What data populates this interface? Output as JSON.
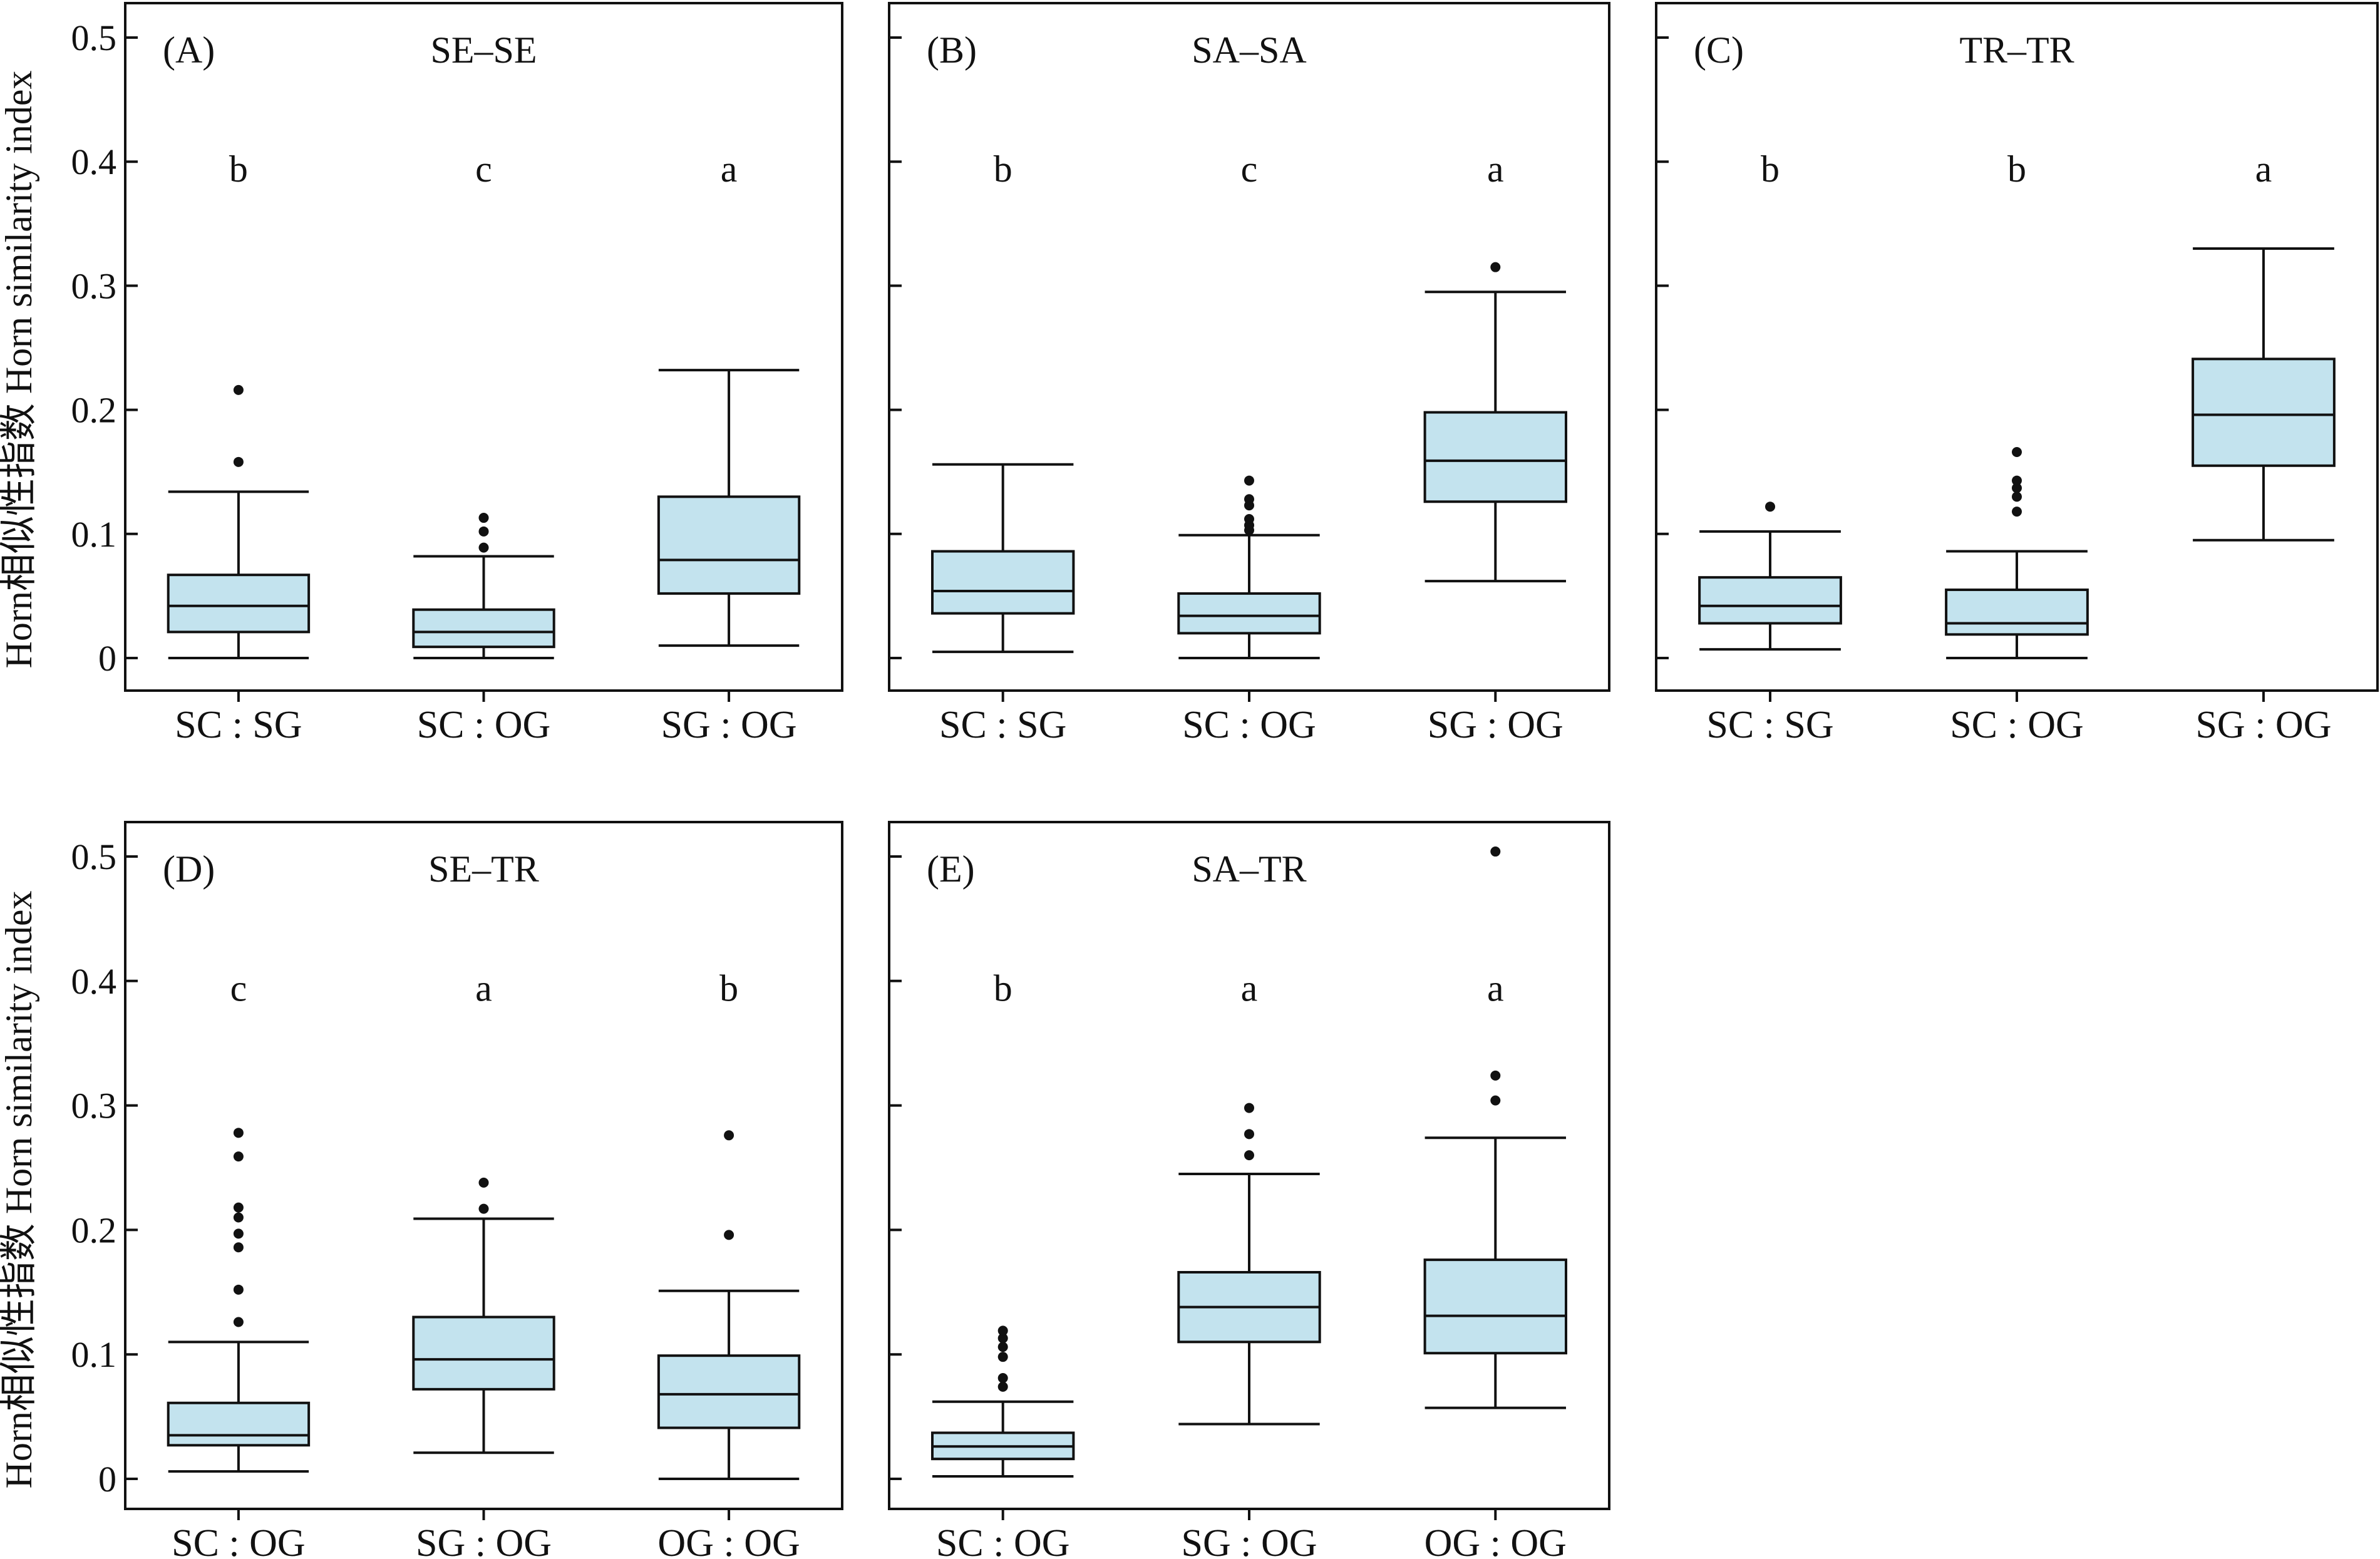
{
  "figure": {
    "ylabel": "Horn相似性指数 Horn similarity index"
  },
  "style": {
    "box_fill": "#c3e3ee",
    "line_color": "#111111"
  },
  "chart_data": [
    {
      "type": "box",
      "panel": "(A)",
      "title": "SE–SE",
      "ylim": [
        0,
        0.52
      ],
      "yticks": [
        0,
        0.1,
        0.2,
        0.3,
        0.4,
        0.5
      ],
      "ytick_labels": [
        "0",
        "0.1",
        "0.2",
        "0.3",
        "0.4",
        "0.5"
      ],
      "show_tick_labels": true,
      "categories": [
        "SC : SG",
        "SC : OG",
        "SG : OG"
      ],
      "boxes": [
        {
          "whisker_low": 0.0,
          "q1": 0.021,
          "median": 0.042,
          "q3": 0.067,
          "whisker_high": 0.134,
          "outliers": [
            0.158,
            0.216
          ]
        },
        {
          "whisker_low": 0.0,
          "q1": 0.009,
          "median": 0.021,
          "q3": 0.039,
          "whisker_high": 0.082,
          "outliers": [
            0.089,
            0.102,
            0.113
          ]
        },
        {
          "whisker_low": 0.01,
          "q1": 0.052,
          "median": 0.079,
          "q3": 0.13,
          "whisker_high": 0.232,
          "outliers": []
        }
      ],
      "letters": [
        "b",
        "c",
        "a"
      ]
    },
    {
      "type": "box",
      "panel": "(B)",
      "title": "SA–SA",
      "ylim": [
        0,
        0.52
      ],
      "yticks": [
        0,
        0.1,
        0.2,
        0.3,
        0.4,
        0.5
      ],
      "ytick_labels": [
        "0",
        "0.1",
        "0.2",
        "0.3",
        "0.4",
        "0.5"
      ],
      "show_tick_labels": false,
      "categories": [
        "SC : SG",
        "SC : OG",
        "SG : OG"
      ],
      "boxes": [
        {
          "whisker_low": 0.005,
          "q1": 0.036,
          "median": 0.054,
          "q3": 0.086,
          "whisker_high": 0.156,
          "outliers": []
        },
        {
          "whisker_low": 0.0,
          "q1": 0.02,
          "median": 0.034,
          "q3": 0.052,
          "whisker_high": 0.099,
          "outliers": [
            0.103,
            0.107,
            0.112,
            0.123,
            0.128,
            0.143
          ]
        },
        {
          "whisker_low": 0.062,
          "q1": 0.126,
          "median": 0.159,
          "q3": 0.198,
          "whisker_high": 0.295,
          "outliers": [
            0.315
          ]
        }
      ],
      "letters": [
        "b",
        "c",
        "a"
      ]
    },
    {
      "type": "box",
      "panel": "(C)",
      "title": "TR–TR",
      "ylim": [
        0,
        0.52
      ],
      "yticks": [
        0,
        0.1,
        0.2,
        0.3,
        0.4,
        0.5
      ],
      "ytick_labels": [
        "0",
        "0.1",
        "0.2",
        "0.3",
        "0.4",
        "0.5"
      ],
      "show_tick_labels": false,
      "categories": [
        "SC : SG",
        "SC : OG",
        "SG : OG"
      ],
      "boxes": [
        {
          "whisker_low": 0.007,
          "q1": 0.028,
          "median": 0.042,
          "q3": 0.065,
          "whisker_high": 0.102,
          "outliers": [
            0.122
          ]
        },
        {
          "whisker_low": 0.0,
          "q1": 0.019,
          "median": 0.028,
          "q3": 0.055,
          "whisker_high": 0.086,
          "outliers": [
            0.118,
            0.13,
            0.137,
            0.143,
            0.166
          ]
        },
        {
          "whisker_low": 0.095,
          "q1": 0.155,
          "median": 0.196,
          "q3": 0.241,
          "whisker_high": 0.33,
          "outliers": []
        }
      ],
      "letters": [
        "b",
        "b",
        "a"
      ]
    },
    {
      "type": "box",
      "panel": "(D)",
      "title": "SE–TR",
      "ylim": [
        0,
        0.52
      ],
      "yticks": [
        0,
        0.1,
        0.2,
        0.3,
        0.4,
        0.5
      ],
      "ytick_labels": [
        "0",
        "0.1",
        "0.2",
        "0.3",
        "0.4",
        "0.5"
      ],
      "show_tick_labels": true,
      "categories": [
        "SC : OG",
        "SG : OG",
        "OG : OG"
      ],
      "boxes": [
        {
          "whisker_low": 0.006,
          "q1": 0.027,
          "median": 0.035,
          "q3": 0.061,
          "whisker_high": 0.11,
          "outliers": [
            0.126,
            0.152,
            0.186,
            0.197,
            0.21,
            0.218,
            0.259,
            0.278
          ]
        },
        {
          "whisker_low": 0.021,
          "q1": 0.072,
          "median": 0.096,
          "q3": 0.13,
          "whisker_high": 0.209,
          "outliers": [
            0.217,
            0.238
          ]
        },
        {
          "whisker_low": 0.0,
          "q1": 0.041,
          "median": 0.068,
          "q3": 0.099,
          "whisker_high": 0.151,
          "outliers": [
            0.196,
            0.276
          ]
        }
      ],
      "letters": [
        "c",
        "a",
        "b"
      ]
    },
    {
      "type": "box",
      "panel": "(E)",
      "title": "SA–TR",
      "ylim": [
        0,
        0.52
      ],
      "yticks": [
        0,
        0.1,
        0.2,
        0.3,
        0.4,
        0.5
      ],
      "ytick_labels": [
        "0",
        "0.1",
        "0.2",
        "0.3",
        "0.4",
        "0.5"
      ],
      "show_tick_labels": false,
      "categories": [
        "SC : OG",
        "SG : OG",
        "OG : OG"
      ],
      "boxes": [
        {
          "whisker_low": 0.002,
          "q1": 0.016,
          "median": 0.026,
          "q3": 0.037,
          "whisker_high": 0.062,
          "outliers": [
            0.074,
            0.081,
            0.098,
            0.106,
            0.113,
            0.119
          ]
        },
        {
          "whisker_low": 0.044,
          "q1": 0.11,
          "median": 0.138,
          "q3": 0.166,
          "whisker_high": 0.245,
          "outliers": [
            0.26,
            0.277,
            0.298
          ]
        },
        {
          "whisker_low": 0.057,
          "q1": 0.101,
          "median": 0.131,
          "q3": 0.176,
          "whisker_high": 0.274,
          "outliers": [
            0.304,
            0.324,
            0.504
          ]
        }
      ],
      "letters": [
        "b",
        "a",
        "a"
      ]
    }
  ]
}
